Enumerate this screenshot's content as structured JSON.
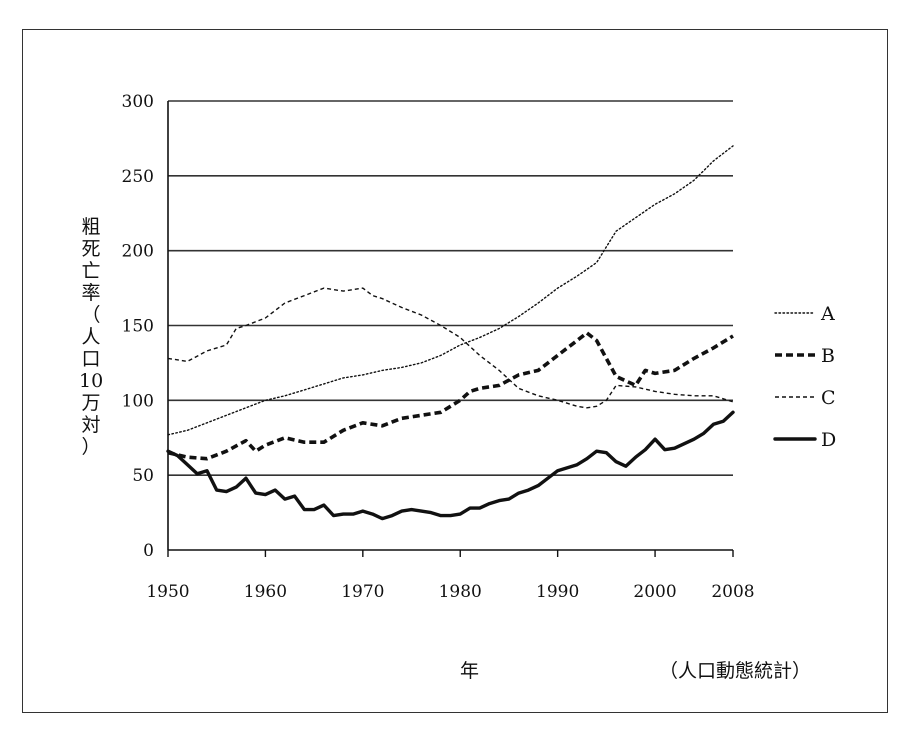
{
  "chart_data": {
    "type": "line",
    "ylabel_chars": [
      "粗",
      "死",
      "亡",
      "率",
      "（",
      "人",
      "口",
      "10",
      "万",
      "対",
      "）"
    ],
    "ylabel": "粗死亡率（人口10万対）",
    "xlabel": "年",
    "source": "（人口動態統計）",
    "ylim": [
      0,
      300
    ],
    "xlim": [
      1950,
      2008
    ],
    "yticks": [
      0,
      50,
      100,
      150,
      200,
      250,
      300
    ],
    "xticks": [
      1950,
      1960,
      1970,
      1980,
      1990,
      2000,
      2008
    ],
    "grid": "horizontal",
    "legend_position": "right",
    "series": [
      {
        "name": "A",
        "style": "dotted",
        "x": [
          1950,
          1952,
          1954,
          1956,
          1958,
          1960,
          1962,
          1964,
          1966,
          1968,
          1970,
          1972,
          1974,
          1976,
          1978,
          1980,
          1982,
          1984,
          1986,
          1988,
          1990,
          1992,
          1994,
          1996,
          1998,
          2000,
          2002,
          2004,
          2006,
          2008
        ],
        "values": [
          77,
          80,
          85,
          90,
          95,
          100,
          103,
          107,
          111,
          115,
          117,
          120,
          122,
          125,
          130,
          137,
          142,
          148,
          156,
          165,
          175,
          183,
          192,
          213,
          222,
          231,
          238,
          247,
          260,
          270
        ]
      },
      {
        "name": "B",
        "style": "dashed-bold",
        "x": [
          1950,
          1952,
          1954,
          1956,
          1958,
          1959,
          1960,
          1962,
          1964,
          1966,
          1968,
          1970,
          1972,
          1974,
          1976,
          1978,
          1980,
          1981,
          1982,
          1984,
          1986,
          1988,
          1990,
          1992,
          1993,
          1994,
          1996,
          1998,
          1999,
          2000,
          2002,
          2004,
          2006,
          2008
        ],
        "values": [
          65,
          62,
          61,
          66,
          73,
          66,
          70,
          75,
          72,
          72,
          80,
          85,
          83,
          88,
          90,
          92,
          100,
          106,
          108,
          110,
          117,
          120,
          130,
          140,
          145,
          140,
          116,
          110,
          120,
          118,
          120,
          128,
          135,
          143
        ]
      },
      {
        "name": "C",
        "style": "dashed",
        "x": [
          1950,
          1952,
          1954,
          1956,
          1957,
          1958,
          1960,
          1962,
          1964,
          1966,
          1968,
          1970,
          1971,
          1972,
          1974,
          1976,
          1978,
          1980,
          1982,
          1984,
          1986,
          1988,
          1990,
          1992,
          1993,
          1994,
          1995,
          1996,
          1998,
          2000,
          2002,
          2004,
          2006,
          2008
        ],
        "values": [
          128,
          126,
          133,
          137,
          148,
          150,
          155,
          165,
          170,
          175,
          173,
          175,
          170,
          168,
          162,
          157,
          150,
          142,
          130,
          120,
          108,
          103,
          100,
          96,
          95,
          96,
          100,
          110,
          109,
          106,
          104,
          103,
          103,
          99
        ]
      },
      {
        "name": "D",
        "style": "solid-bold",
        "x": [
          1950,
          1951,
          1952,
          1953,
          1954,
          1955,
          1956,
          1957,
          1958,
          1959,
          1960,
          1961,
          1962,
          1963,
          1964,
          1965,
          1966,
          1967,
          1968,
          1969,
          1970,
          1971,
          1972,
          1973,
          1974,
          1975,
          1976,
          1977,
          1978,
          1979,
          1980,
          1981,
          1982,
          1983,
          1984,
          1985,
          1986,
          1987,
          1988,
          1989,
          1990,
          1991,
          1992,
          1993,
          1994,
          1995,
          1996,
          1997,
          1998,
          1999,
          2000,
          2001,
          2002,
          2003,
          2004,
          2005,
          2006,
          2007,
          2008
        ],
        "values": [
          66,
          63,
          57,
          51,
          53,
          40,
          39,
          42,
          48,
          38,
          37,
          40,
          34,
          36,
          27,
          27,
          30,
          23,
          24,
          24,
          26,
          24,
          21,
          23,
          26,
          27,
          26,
          25,
          23,
          23,
          24,
          28,
          28,
          31,
          33,
          34,
          38,
          40,
          43,
          48,
          53,
          55,
          57,
          61,
          66,
          65,
          59,
          56,
          62,
          67,
          74,
          67,
          68,
          71,
          74,
          78,
          84,
          86,
          92
        ]
      }
    ]
  }
}
